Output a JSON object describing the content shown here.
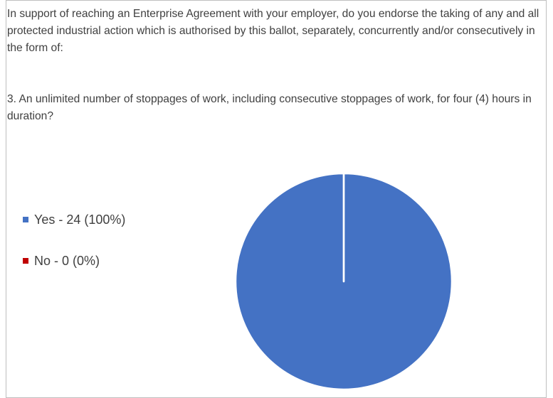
{
  "chart_data": {
    "type": "pie",
    "title": "In support of reaching an Enterprise Agreement with your employer, do you endorse the taking of any and all protected industrial action which is authorised by this ballot, separately, concurrently and/or consecutively in the form of:",
    "subtitle": "3. An unlimited number of stoppages of work, including consecutive stoppages of work, for four (4) hours in duration?",
    "categories": [
      "Yes - 24 (100%)",
      "No - 0 (0%)"
    ],
    "values": [
      24,
      0
    ],
    "colors": [
      "#4472c4",
      "#c00000"
    ],
    "legend": "left"
  }
}
